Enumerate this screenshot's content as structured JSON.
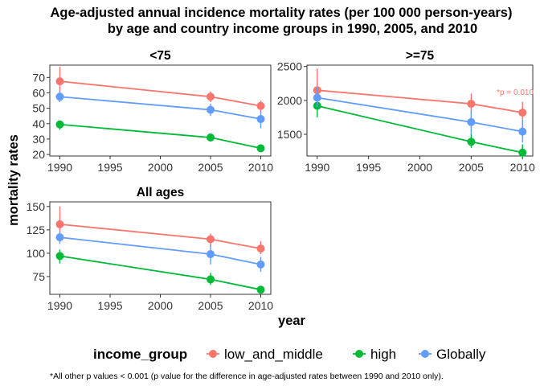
{
  "chart_data": {
    "type": "line",
    "title_line1": "Age-adjusted annual incidence mortality rates (per 100 000 person-years)",
    "title_line2": "by age and country income groups in 1990, 2005, and 2010",
    "xlabel": "year",
    "ylabel": "mortality rates",
    "legend": {
      "title": "income_group",
      "placement": "bottom",
      "entries": [
        {
          "name": "low_and_middle",
          "color": "#F8766D"
        },
        {
          "name": "high",
          "color": "#00BA38"
        },
        {
          "name": "Globally",
          "color": "#619CFF"
        }
      ]
    },
    "footnote": "*All other p values < 0.001 (p value for the difference in age-adjusted rates between 1990 and 2010 only).",
    "x_ticks": [
      1990,
      1995,
      2000,
      2005,
      2010
    ],
    "xlim": [
      1989,
      2011
    ],
    "facets": [
      {
        "label": "<75",
        "ylim": [
          19,
          78
        ],
        "y_ticks": [
          20,
          30,
          40,
          50,
          60,
          70
        ],
        "series": [
          {
            "name": "low_and_middle",
            "x": [
              1990,
              2005,
              2010
            ],
            "y": [
              67.5,
              57.5,
              51.5
            ],
            "lo": [
              60,
              54,
              47
            ],
            "hi": [
              77,
              61,
              55
            ]
          },
          {
            "name": "high",
            "x": [
              1990,
              2005,
              2010
            ],
            "y": [
              39.5,
              31,
              24
            ],
            "lo": [
              36,
              29,
              22
            ],
            "hi": [
              42,
              33,
              26
            ]
          },
          {
            "name": "Globally",
            "x": [
              1990,
              2005,
              2010
            ],
            "y": [
              57.5,
              49,
              43
            ],
            "lo": [
              54,
              45,
              37
            ],
            "hi": [
              61,
              53,
              48
            ]
          }
        ]
      },
      {
        "label": ">=75",
        "ylim": [
          1180,
          2520
        ],
        "y_ticks": [
          1500,
          2000,
          2500
        ],
        "annotation": {
          "text": "*p = 0.010",
          "color": "#F8766D"
        },
        "series": [
          {
            "name": "low_and_middle",
            "x": [
              1990,
              2005,
              2010
            ],
            "y": [
              2150,
              1950,
              1820
            ],
            "lo": [
              1900,
              1700,
              1450
            ],
            "hi": [
              2470,
              2100,
              1980
            ]
          },
          {
            "name": "high",
            "x": [
              1990,
              2005,
              2010
            ],
            "y": [
              1920,
              1390,
              1230
            ],
            "lo": [
              1750,
              1300,
              1150
            ],
            "hi": [
              2090,
              1500,
              1350
            ]
          },
          {
            "name": "Globally",
            "x": [
              1990,
              2005,
              2010
            ],
            "y": [
              2040,
              1680,
              1540
            ],
            "lo": [
              1900,
              1500,
              1380
            ],
            "hi": [
              2200,
              1850,
              1720
            ]
          }
        ]
      },
      {
        "label": "All ages",
        "ylim": [
          56,
          155
        ],
        "y_ticks": [
          75,
          100,
          125,
          150
        ],
        "series": [
          {
            "name": "low_and_middle",
            "x": [
              1990,
              2005,
              2010
            ],
            "y": [
              131,
              115,
              105
            ],
            "lo": [
              117,
              107,
              99
            ],
            "hi": [
              150,
              121,
              113
            ]
          },
          {
            "name": "high",
            "x": [
              1990,
              2005,
              2010
            ],
            "y": [
              97,
              72,
              61
            ],
            "lo": [
              89,
              66,
              57
            ],
            "hi": [
              104,
              79,
              65
            ]
          },
          {
            "name": "Globally",
            "x": [
              1990,
              2005,
              2010
            ],
            "y": [
              117,
              99,
              88
            ],
            "lo": [
              110,
              88,
              80
            ],
            "hi": [
              123,
              109,
              96
            ]
          }
        ]
      }
    ]
  }
}
